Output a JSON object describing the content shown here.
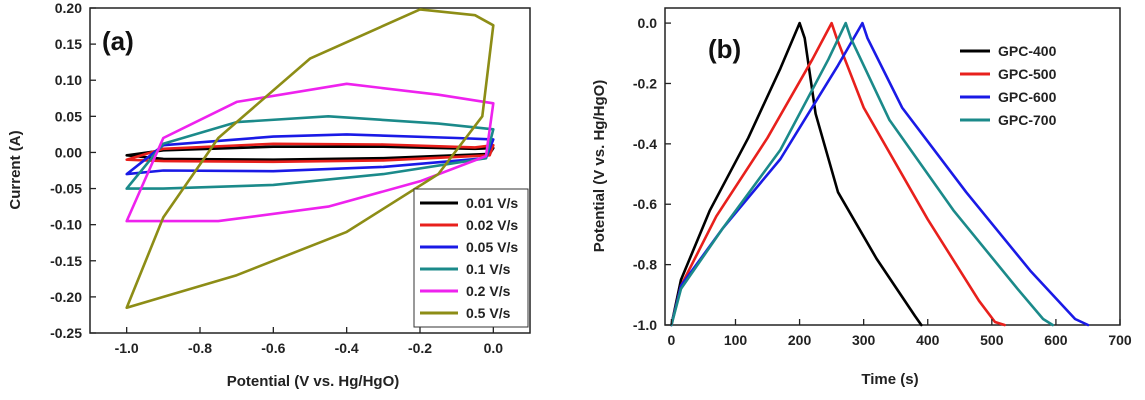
{
  "chart_data": [
    {
      "type": "line",
      "panel_label": "(a)",
      "xlabel": "Potential (V vs. Hg/HgO)",
      "ylabel": "Current (A)",
      "xlim": [
        -1.1,
        0.1
      ],
      "ylim": [
        -0.25,
        0.2
      ],
      "xticks": [
        "-1.0",
        "-0.8",
        "-0.6",
        "-0.4",
        "-0.2",
        "0.0"
      ],
      "yticks": [
        "-0.25",
        "-0.20",
        "-0.15",
        "-0.10",
        "-0.05",
        "0.00",
        "0.05",
        "0.10",
        "0.15",
        "0.20"
      ],
      "legend_position": "bottom-right",
      "series": [
        {
          "name": "0.01 V/s",
          "color": "#000000",
          "x": [
            -1.0,
            -0.9,
            -0.6,
            -0.3,
            -0.05,
            0.0,
            -0.01,
            -0.3,
            -0.6,
            -0.9,
            -1.0
          ],
          "y": [
            -0.004,
            0.003,
            0.008,
            0.008,
            0.005,
            0.006,
            -0.002,
            -0.008,
            -0.01,
            -0.009,
            -0.004
          ]
        },
        {
          "name": "0.02 V/s",
          "color": "#e8201c",
          "x": [
            -1.0,
            -0.9,
            -0.6,
            -0.3,
            -0.05,
            0.0,
            -0.01,
            -0.3,
            -0.6,
            -0.9,
            -1.0
          ],
          "y": [
            -0.01,
            0.005,
            0.012,
            0.011,
            0.007,
            0.01,
            -0.004,
            -0.011,
            -0.013,
            -0.012,
            -0.01
          ]
        },
        {
          "name": "0.05 V/s",
          "color": "#1a1ae6",
          "x": [
            -1.0,
            -0.9,
            -0.6,
            -0.4,
            -0.1,
            0.0,
            -0.02,
            -0.3,
            -0.6,
            -0.9,
            -1.0
          ],
          "y": [
            -0.03,
            0.01,
            0.022,
            0.025,
            0.02,
            0.018,
            -0.008,
            -0.02,
            -0.026,
            -0.025,
            -0.03
          ]
        },
        {
          "name": "0.1 V/s",
          "color": "#1b8a8a",
          "x": [
            -1.0,
            -0.9,
            -0.7,
            -0.45,
            -0.15,
            0.0,
            -0.02,
            -0.3,
            -0.6,
            -0.9,
            -1.0
          ],
          "y": [
            -0.05,
            0.012,
            0.042,
            0.05,
            0.04,
            0.032,
            -0.008,
            -0.03,
            -0.045,
            -0.05,
            -0.05
          ]
        },
        {
          "name": "0.2 V/s",
          "color": "#ee22ee",
          "x": [
            -1.0,
            -0.9,
            -0.7,
            -0.4,
            -0.15,
            0.0,
            -0.02,
            -0.2,
            -0.45,
            -0.75,
            -1.0
          ],
          "y": [
            -0.095,
            0.02,
            0.07,
            0.095,
            0.08,
            0.068,
            -0.005,
            -0.04,
            -0.075,
            -0.095,
            -0.095
          ]
        },
        {
          "name": "0.5 V/s",
          "color": "#8d8d16",
          "x": [
            -1.0,
            -0.9,
            -0.75,
            -0.5,
            -0.2,
            -0.05,
            0.0,
            -0.03,
            -0.15,
            -0.4,
            -0.7,
            -0.9,
            -1.0
          ],
          "y": [
            -0.215,
            -0.09,
            0.02,
            0.13,
            0.198,
            0.19,
            0.176,
            0.05,
            -0.03,
            -0.11,
            -0.17,
            -0.2,
            -0.215
          ]
        }
      ]
    },
    {
      "type": "line",
      "panel_label": "(b)",
      "xlabel": "Time (s)",
      "ylabel": "Potential (V vs. Hg/HgO)",
      "xlim": [
        -10,
        700
      ],
      "ylim": [
        -1.0,
        0.05
      ],
      "xticks": [
        "0",
        "100",
        "200",
        "300",
        "400",
        "500",
        "600",
        "700"
      ],
      "yticks": [
        "-1.0",
        "-0.8",
        "-0.6",
        "-0.4",
        "-0.2",
        "0.0"
      ],
      "legend_position": "top-right",
      "series": [
        {
          "name": "GPC-400",
          "color": "#000000",
          "x": [
            0,
            15,
            60,
            120,
            170,
            200,
            208,
            225,
            260,
            320,
            380,
            390
          ],
          "y": [
            -1.0,
            -0.85,
            -0.62,
            -0.38,
            -0.15,
            0.0,
            -0.05,
            -0.3,
            -0.56,
            -0.78,
            -0.97,
            -1.0
          ]
        },
        {
          "name": "GPC-500",
          "color": "#e8201c",
          "x": [
            0,
            15,
            70,
            150,
            220,
            250,
            258,
            300,
            400,
            480,
            505,
            520
          ],
          "y": [
            -1.0,
            -0.87,
            -0.64,
            -0.38,
            -0.12,
            0.0,
            -0.05,
            -0.28,
            -0.65,
            -0.92,
            -0.99,
            -1.0
          ]
        },
        {
          "name": "GPC-600",
          "color": "#1a1ae6",
          "x": [
            0,
            15,
            80,
            170,
            260,
            298,
            306,
            360,
            460,
            560,
            630,
            650
          ],
          "y": [
            -1.0,
            -0.87,
            -0.68,
            -0.45,
            -0.14,
            0.0,
            -0.05,
            -0.28,
            -0.56,
            -0.82,
            -0.98,
            -1.0
          ]
        },
        {
          "name": "GPC-700",
          "color": "#1b8a8a",
          "x": [
            0,
            15,
            80,
            170,
            245,
            272,
            280,
            340,
            440,
            540,
            580,
            595
          ],
          "y": [
            -1.0,
            -0.88,
            -0.68,
            -0.42,
            -0.12,
            0.0,
            -0.05,
            -0.32,
            -0.62,
            -0.88,
            -0.98,
            -1.0
          ]
        }
      ]
    }
  ]
}
